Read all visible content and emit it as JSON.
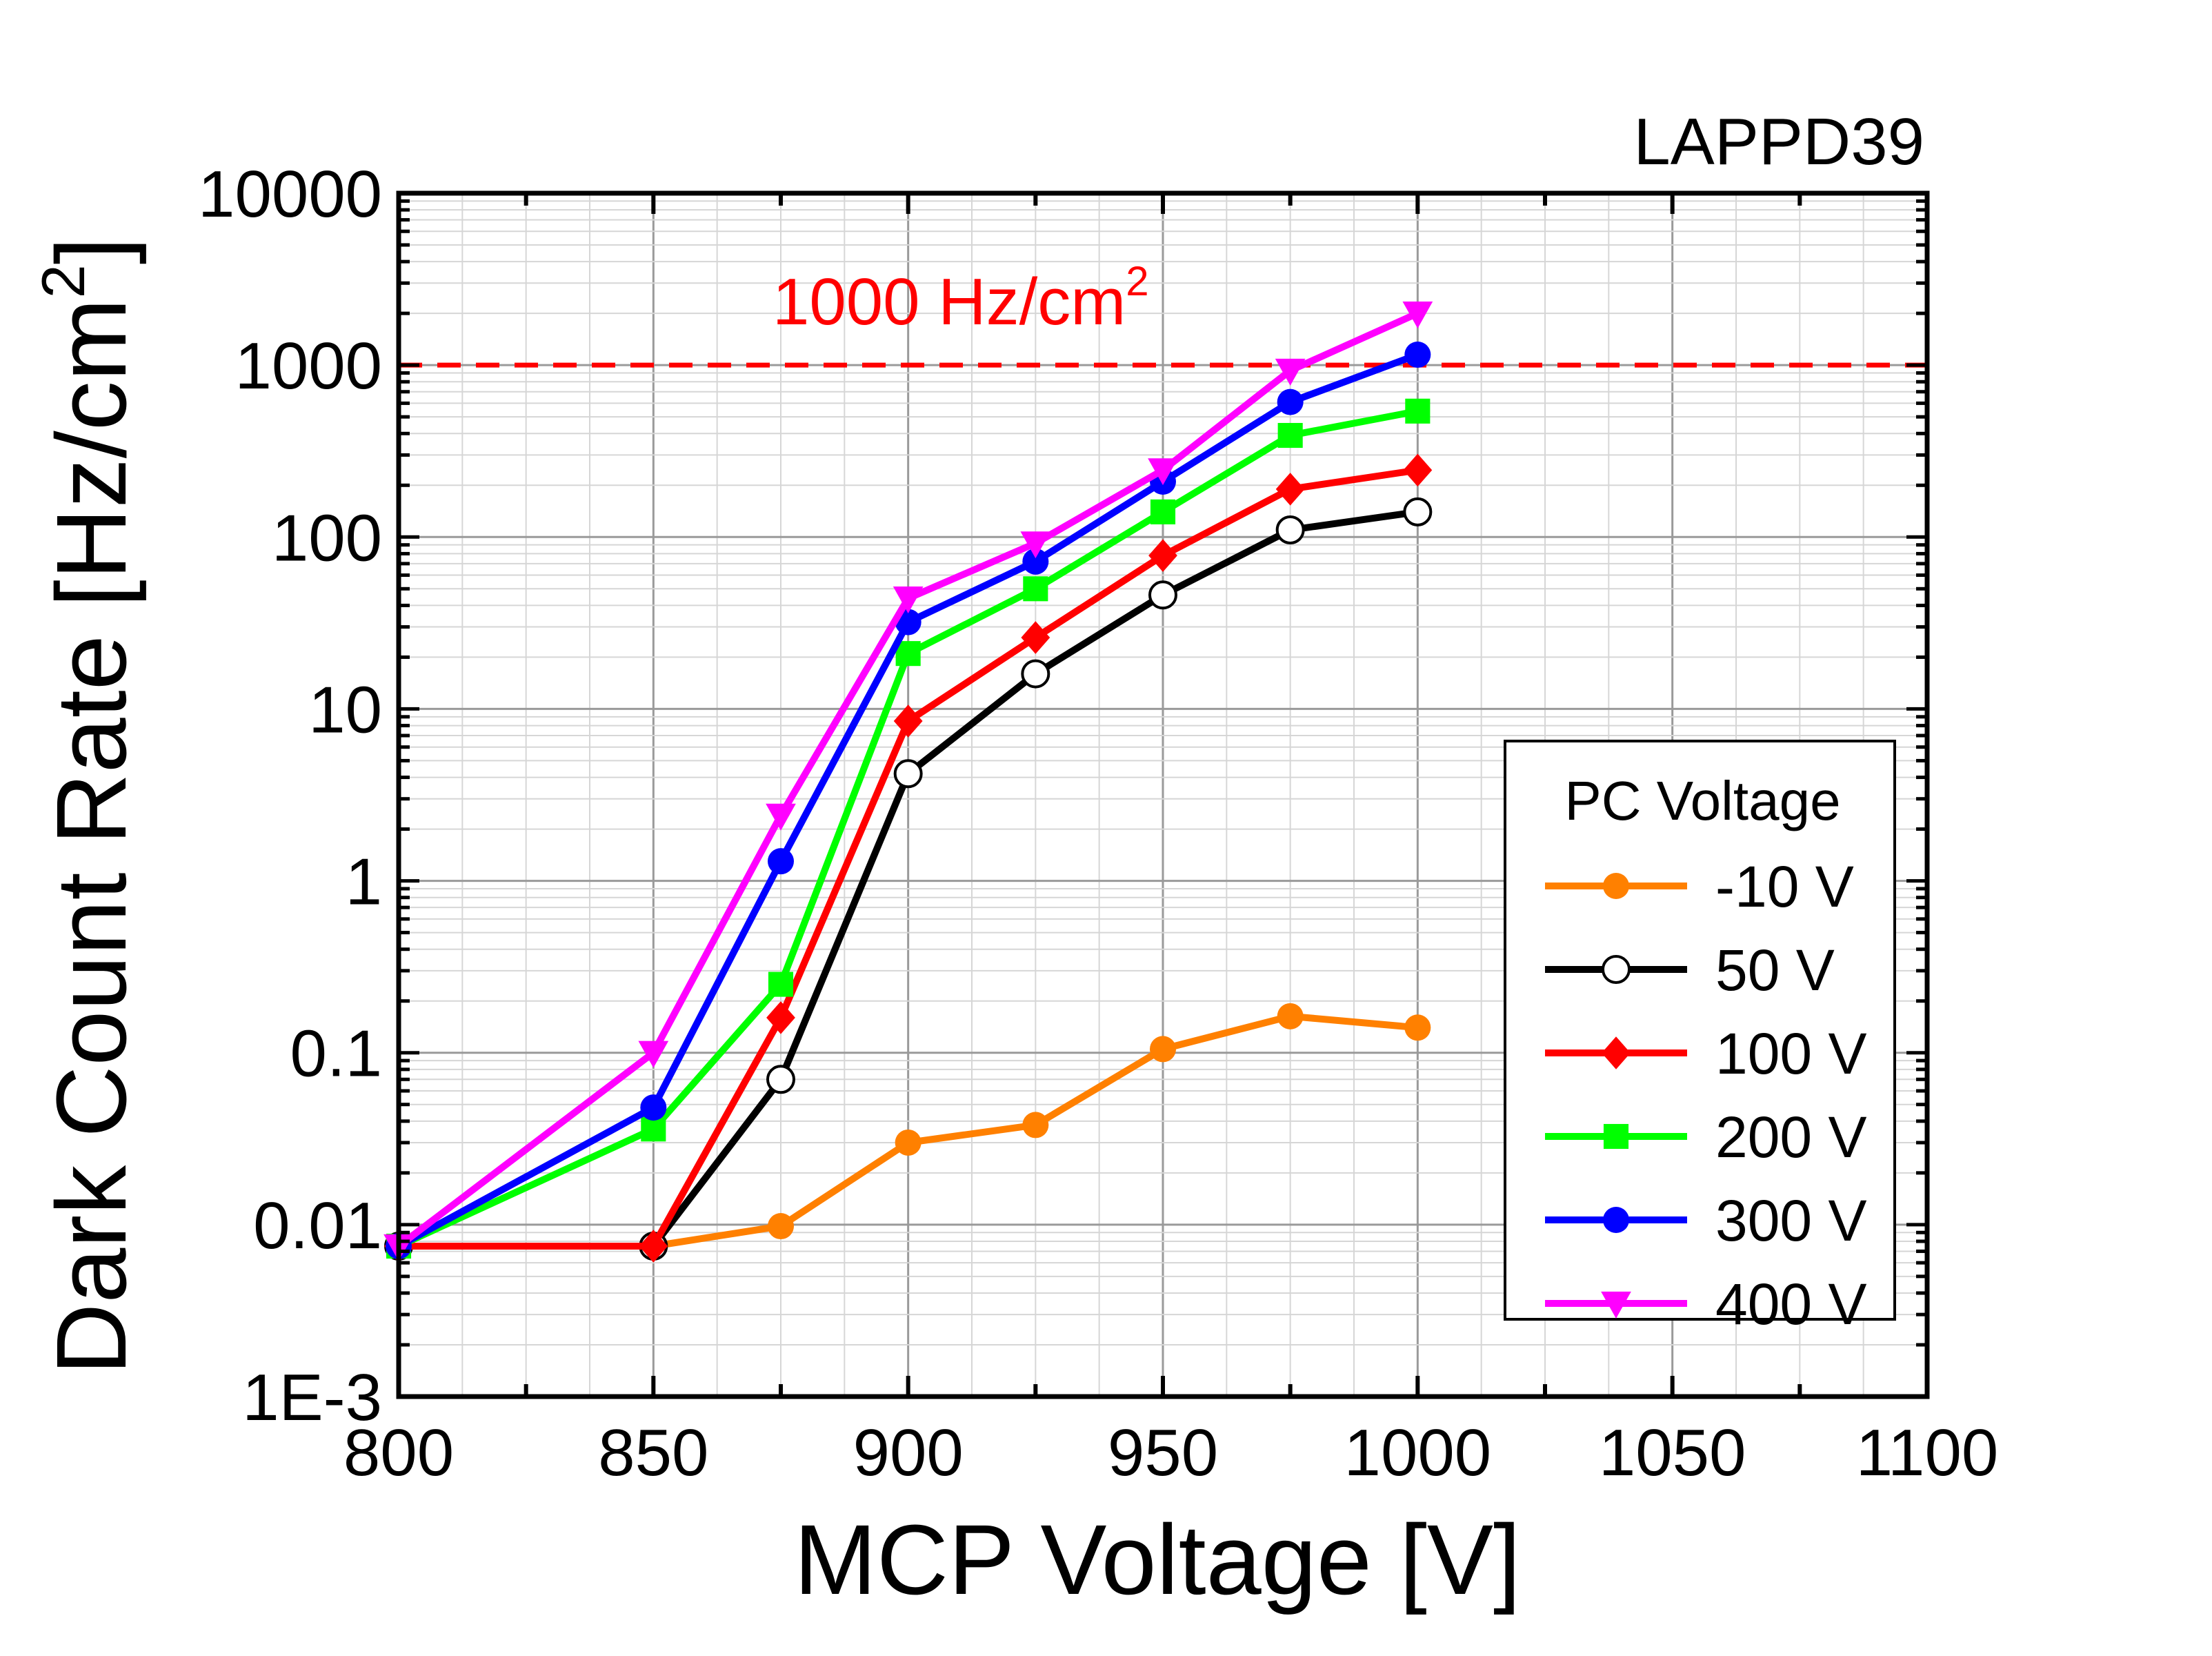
{
  "chart_data": {
    "type": "line",
    "title": "LAPPD39",
    "xlabel": "MCP Voltage [V]",
    "ylabel": "Dark Count Rate [Hz/cm",
    "ylabel_sup": "2",
    "ylabel_close": "]",
    "x_scale": "linear",
    "y_scale": "log",
    "xlim": [
      800,
      1100
    ],
    "ylim": [
      0.001,
      10000
    ],
    "x_ticks": [
      800,
      850,
      900,
      950,
      1000,
      1050,
      1100
    ],
    "x_tick_labels": [
      "800",
      "850",
      "900",
      "950",
      "1000",
      "1050",
      "1100"
    ],
    "y_ticks": [
      0.001,
      0.01,
      0.1,
      1,
      10,
      100,
      1000,
      10000
    ],
    "y_tick_labels": [
      "1E-3",
      "0.01",
      "0.1",
      "1",
      "10",
      "100",
      "1000",
      "10000"
    ],
    "grid": true,
    "reference_line": {
      "value": 1000,
      "label": "1000 Hz/cm",
      "label_sup": "2",
      "color": "#ff0000",
      "style": "dashed"
    },
    "legend": {
      "title": "PC Voltage",
      "position": "bottom-right"
    },
    "x": [
      800,
      850,
      875,
      900,
      925,
      950,
      975,
      1000
    ],
    "series": [
      {
        "name": "-10 V",
        "color": "#ff8000",
        "marker": "circle-filled",
        "values": [
          0.0075,
          0.0075,
          0.0098,
          0.03,
          0.038,
          0.105,
          0.163,
          0.14
        ]
      },
      {
        "name": "50 V",
        "color": "#000000",
        "marker": "circle-open",
        "values": [
          0.0075,
          0.0075,
          0.07,
          4.2,
          16,
          46,
          110,
          140
        ]
      },
      {
        "name": "100 V",
        "color": "#ff0000",
        "marker": "diamond",
        "values": [
          0.0075,
          0.0075,
          0.16,
          8.5,
          26,
          78,
          190,
          245
        ]
      },
      {
        "name": "200 V",
        "color": "#00ff00",
        "marker": "square",
        "values": [
          0.0075,
          0.036,
          0.25,
          21,
          50,
          140,
          390,
          540
        ]
      },
      {
        "name": "300 V",
        "color": "#0000ff",
        "marker": "circle-filled",
        "values": [
          0.0075,
          0.048,
          1.3,
          32,
          72,
          210,
          610,
          1150
        ]
      },
      {
        "name": "400 V",
        "color": "#ff00ff",
        "marker": "triangle-down",
        "values": [
          0.0075,
          0.1,
          2.4,
          44,
          92,
          245,
          930,
          2000
        ]
      }
    ]
  }
}
